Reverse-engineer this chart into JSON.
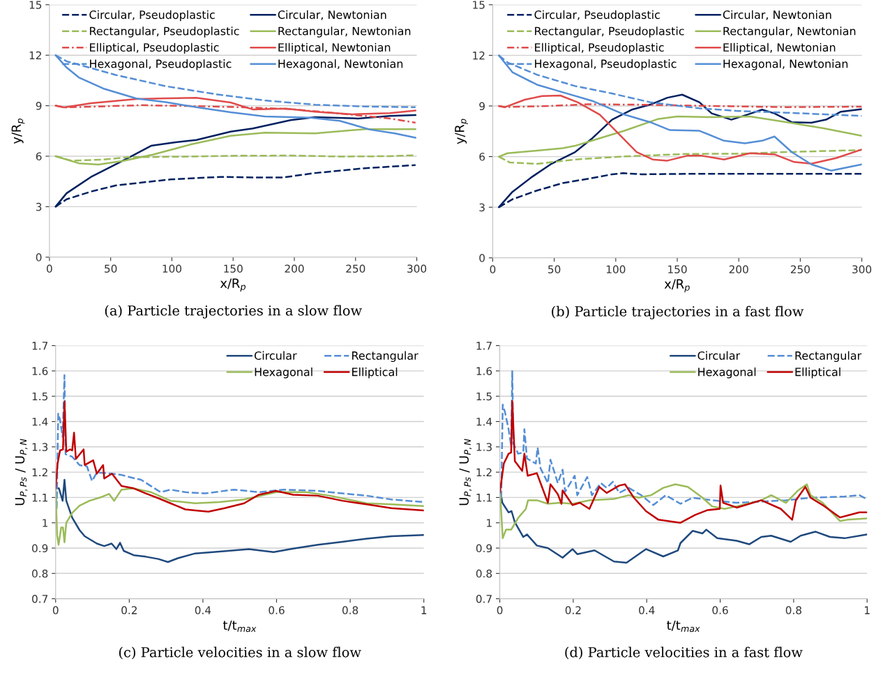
{
  "chart_data": [
    {
      "type": "line",
      "xlabel": "x/R$_{p}$",
      "ylabel": "y/R$_{p}$",
      "xlim": [
        0,
        300
      ],
      "xticks": [
        0,
        50,
        100,
        150,
        200,
        250,
        300
      ],
      "ylim": [
        0,
        15
      ],
      "yticks": [
        0,
        3,
        6,
        9,
        12,
        15
      ],
      "grid": "y",
      "legend": "top right",
      "marker": "none",
      "annotations": [
        "(a) Particle trajectories in a slow flow"
      ],
      "series": [
        {
          "name": "Circular, Pseudoplastic",
          "color": "#002060",
          "line_style": "dashed",
          "x": [
            5,
            14,
            34,
            54,
            81,
            99,
            120,
            140,
            166,
            191,
            217,
            237,
            258,
            299
          ],
          "values": [
            3,
            3.44,
            3.9,
            4.26,
            4.48,
            4.62,
            4.7,
            4.77,
            4.74,
            4.74,
            5.0,
            5.14,
            5.29,
            5.47
          ]
        },
        {
          "name": "Circular, Newtonian",
          "color": "#002060",
          "line_style": "solid",
          "x": [
            5,
            14,
            34,
            50,
            65,
            83,
            101,
            120,
            148,
            166,
            197,
            217,
            252,
            278,
            299
          ],
          "values": [
            3,
            3.8,
            4.77,
            5.36,
            5.92,
            6.62,
            6.81,
            6.96,
            7.46,
            7.65,
            8.14,
            8.32,
            8.24,
            8.39,
            8.44
          ]
        },
        {
          "name": "Rectangular, Pseudoplastic",
          "color": "#9bbb59",
          "line_style": "dashed",
          "x": [
            5,
            18,
            44,
            65,
            81,
            115,
            156,
            197,
            237,
            278,
            299
          ],
          "values": [
            6,
            5.73,
            5.8,
            5.95,
            5.95,
            5.98,
            6.03,
            6.04,
            5.98,
            6.0,
            6.06
          ]
        },
        {
          "name": "Rectangular, Newtonian",
          "color": "#9bbb59",
          "line_style": "solid",
          "x": [
            5,
            24,
            40,
            61,
            85,
            115,
            148,
            176,
            217,
            258,
            299
          ],
          "values": [
            6,
            5.58,
            5.5,
            5.73,
            6.1,
            6.69,
            7.21,
            7.4,
            7.36,
            7.61,
            7.61
          ]
        },
        {
          "name": "Elliptical, Pseudoplastic",
          "color": "#e04b4b",
          "line_style": "dashdot",
          "x": [
            5,
            12,
            34,
            75,
            115,
            156,
            197,
            237,
            278,
            299
          ],
          "values": [
            9,
            8.9,
            8.94,
            9.03,
            8.98,
            8.91,
            8.8,
            8.54,
            8.24,
            7.99
          ]
        },
        {
          "name": "Elliptical, Newtonian",
          "color": "#e04b4b",
          "line_style": "solid",
          "x": [
            5,
            12,
            34,
            71,
            95,
            120,
            148,
            166,
            193,
            217,
            248,
            278,
            299
          ],
          "values": [
            9,
            8.9,
            9.15,
            9.4,
            9.44,
            9.47,
            9.19,
            8.78,
            8.83,
            8.64,
            8.49,
            8.56,
            8.71
          ]
        },
        {
          "name": "Hexagonal, Pseudoplastic",
          "color": "#558ed5",
          "line_style": "dashed",
          "x": [
            5,
            14,
            54,
            95,
            136,
            176,
            217,
            258,
            299
          ],
          "values": [
            12,
            11.64,
            10.83,
            10.16,
            9.68,
            9.31,
            9.06,
            8.95,
            8.91
          ]
        },
        {
          "name": "Hexagonal, Newtonian",
          "color": "#558ed5",
          "line_style": "solid",
          "x": [
            5,
            14,
            24,
            44,
            71,
            95,
            120,
            148,
            176,
            213,
            237,
            262,
            282,
            299
          ],
          "values": [
            12,
            11.27,
            10.68,
            10.02,
            9.43,
            9.21,
            8.91,
            8.61,
            8.36,
            8.29,
            8.1,
            7.58,
            7.36,
            7.1
          ]
        }
      ]
    },
    {
      "type": "line",
      "xlabel": "x/R$_{p}$",
      "ylabel": "y/R$_{p}$",
      "xlim": [
        0,
        300
      ],
      "xticks": [
        0,
        50,
        100,
        150,
        200,
        250,
        300
      ],
      "ylim": [
        0,
        15
      ],
      "yticks": [
        0,
        3,
        6,
        9,
        12,
        15
      ],
      "grid": "y",
      "legend": "top right",
      "marker": "none",
      "annotations": [
        "(b) Particle trajectories in a fast flow"
      ],
      "series": [
        {
          "name": "Circular, Pseudoplastic",
          "color": "#002060",
          "line_style": "dashed",
          "x": [
            5,
            16,
            36,
            57,
            81,
            97,
            106,
            121,
            158,
            198,
            239,
            300
          ],
          "values": [
            3,
            3.47,
            3.99,
            4.43,
            4.73,
            4.95,
            5.02,
            4.95,
            4.98,
            4.98,
            4.98,
            4.98
          ]
        },
        {
          "name": "Circular, Newtonian",
          "color": "#002060",
          "line_style": "solid",
          "x": [
            5,
            16,
            32,
            47,
            67,
            81,
            97,
            113,
            128,
            142,
            154,
            168,
            178,
            194,
            207,
            219,
            229,
            243,
            259,
            271,
            283,
            300
          ],
          "values": [
            3,
            3.91,
            4.8,
            5.54,
            6.27,
            7.09,
            8.19,
            8.78,
            9.08,
            9.49,
            9.67,
            9.22,
            8.56,
            8.19,
            8.49,
            8.78,
            8.56,
            8.04,
            8.01,
            8.19,
            8.66,
            8.81
          ]
        },
        {
          "name": "Rectangular, Pseudoplastic",
          "color": "#9bbb59",
          "line_style": "dashed",
          "x": [
            5,
            14,
            36,
            67,
            107,
            158,
            198,
            239,
            300
          ],
          "values": [
            6,
            5.65,
            5.57,
            5.83,
            6.01,
            6.16,
            6.17,
            6.27,
            6.39
          ]
        },
        {
          "name": "Rectangular, Newtonian",
          "color": "#9bbb59",
          "line_style": "solid",
          "x": [
            5,
            12,
            36,
            57,
            67,
            87,
            107,
            134,
            150,
            178,
            209,
            239,
            269,
            300
          ],
          "values": [
            6,
            6.2,
            6.35,
            6.5,
            6.64,
            7.09,
            7.53,
            8.22,
            8.38,
            8.34,
            8.38,
            8.04,
            7.68,
            7.23
          ]
        },
        {
          "name": "Elliptical, Pseudoplastic",
          "color": "#e04b4b",
          "line_style": "dashdot",
          "x": [
            5,
            10,
            46,
            77,
            117,
            178,
            239,
            300
          ],
          "values": [
            9,
            8.93,
            9.0,
            9.1,
            9.08,
            9.0,
            8.93,
            8.96
          ]
        },
        {
          "name": "Elliptical, Newtonian",
          "color": "#e04b4b",
          "line_style": "solid",
          "x": [
            5,
            10,
            26,
            40,
            55,
            69,
            87,
            101,
            117,
            130,
            142,
            158,
            170,
            188,
            209,
            229,
            245,
            259,
            279,
            300
          ],
          "values": [
            9,
            8.93,
            9.37,
            9.59,
            9.62,
            9.22,
            8.49,
            7.45,
            6.27,
            5.83,
            5.76,
            6.05,
            6.05,
            5.83,
            6.2,
            6.13,
            5.68,
            5.58,
            5.91,
            6.42
          ]
        },
        {
          "name": "Hexagonal, Pseudoplastic",
          "color": "#558ed5",
          "line_style": "dashed",
          "x": [
            5,
            12,
            36,
            67,
            97,
            128,
            168,
            198,
            239,
            300
          ],
          "values": [
            12,
            11.58,
            10.85,
            10.18,
            9.74,
            9.22,
            8.86,
            8.71,
            8.6,
            8.41
          ]
        },
        {
          "name": "Hexagonal, Newtonian",
          "color": "#558ed5",
          "line_style": "solid",
          "x": [
            5,
            16,
            36,
            57,
            81,
            107,
            128,
            144,
            168,
            188,
            205,
            219,
            229,
            243,
            259,
            275,
            300
          ],
          "values": [
            12,
            11.0,
            10.26,
            9.81,
            9.3,
            8.49,
            8.04,
            7.57,
            7.53,
            6.94,
            6.79,
            6.94,
            7.19,
            6.27,
            5.54,
            5.17,
            5.54
          ]
        }
      ]
    },
    {
      "type": "line",
      "xlabel": "t/t$_{max}$",
      "ylabel": "U$_{P,Ps}$ / U$_{P,N}$",
      "xlim": [
        0,
        1
      ],
      "xticks": [
        0,
        0.2,
        0.4,
        0.6,
        0.8,
        1
      ],
      "ylim": [
        0.7,
        1.7
      ],
      "yticks": [
        0.7,
        0.8,
        0.9,
        1,
        1.1,
        1.2,
        1.3,
        1.4,
        1.5,
        1.6,
        1.7
      ],
      "grid": "y",
      "legend": "top right",
      "marker": "none",
      "annotations": [
        "(c) Particle velocities in a slow flow"
      ],
      "series": [
        {
          "name": "Circular",
          "color": "#1f497d",
          "line_style": "solid",
          "x": [
            0,
            0.009,
            0.019,
            0.024,
            0.029,
            0.045,
            0.065,
            0.079,
            0.112,
            0.132,
            0.152,
            0.165,
            0.175,
            0.185,
            0.212,
            0.245,
            0.279,
            0.305,
            0.332,
            0.379,
            0.445,
            0.525,
            0.592,
            0.645,
            0.712,
            0.779,
            0.845,
            0.912,
            0.999
          ],
          "values": [
            1.136,
            1.136,
            1.087,
            1.17,
            1.087,
            1.02,
            0.971,
            0.947,
            0.918,
            0.908,
            0.918,
            0.896,
            0.921,
            0.889,
            0.872,
            0.866,
            0.857,
            0.845,
            0.86,
            0.879,
            0.886,
            0.896,
            0.884,
            0.898,
            0.913,
            0.925,
            0.937,
            0.947,
            0.952
          ]
        },
        {
          "name": "Rectangular",
          "color": "#558ed5",
          "line_style": "dashed",
          "x": [
            0,
            0.003,
            0.007,
            0.012,
            0.019,
            0.024,
            0.027,
            0.045,
            0.065,
            0.085,
            0.099,
            0.112,
            0.152,
            0.179,
            0.205,
            0.232,
            0.259,
            0.285,
            0.312,
            0.352,
            0.405,
            0.485,
            0.552,
            0.619,
            0.712,
            0.779,
            0.845,
            0.912,
            0.999
          ],
          "values": [
            1.136,
            1.058,
            1.431,
            1.407,
            1.339,
            1.583,
            1.271,
            1.261,
            1.228,
            1.223,
            1.165,
            1.199,
            1.194,
            1.189,
            1.179,
            1.17,
            1.145,
            1.121,
            1.131,
            1.121,
            1.116,
            1.131,
            1.121,
            1.131,
            1.126,
            1.116,
            1.107,
            1.092,
            1.082
          ]
        },
        {
          "name": "Hexagonal",
          "color": "#9bbb59",
          "line_style": "solid",
          "x": [
            0,
            0.004,
            0.008,
            0.015,
            0.02,
            0.024,
            0.029,
            0.045,
            0.065,
            0.092,
            0.125,
            0.145,
            0.159,
            0.179,
            0.212,
            0.259,
            0.312,
            0.379,
            0.445,
            0.512,
            0.599,
            0.679,
            0.745,
            0.845,
            0.912,
            0.999
          ],
          "values": [
            1.136,
            0.952,
            0.913,
            0.981,
            0.981,
            0.923,
            1.0,
            1.039,
            1.068,
            1.087,
            1.102,
            1.114,
            1.087,
            1.131,
            1.136,
            1.121,
            1.087,
            1.077,
            1.082,
            1.092,
            1.121,
            1.121,
            1.107,
            1.077,
            1.073,
            1.066
          ]
        },
        {
          "name": "Elliptical",
          "color": "#c00000",
          "line_style": "solid",
          "x": [
            0,
            0.005,
            0.012,
            0.02,
            0.024,
            0.029,
            0.039,
            0.045,
            0.05,
            0.055,
            0.076,
            0.079,
            0.102,
            0.112,
            0.129,
            0.132,
            0.153,
            0.179,
            0.212,
            0.245,
            0.279,
            0.312,
            0.352,
            0.379,
            0.415,
            0.459,
            0.512,
            0.552,
            0.599,
            0.645,
            0.712,
            0.779,
            0.845,
            0.912,
            0.999
          ],
          "values": [
            1.136,
            1.232,
            1.286,
            1.29,
            1.479,
            1.281,
            1.29,
            1.286,
            1.356,
            1.252,
            1.29,
            1.228,
            1.247,
            1.194,
            1.228,
            1.175,
            1.194,
            1.145,
            1.136,
            1.116,
            1.097,
            1.077,
            1.053,
            1.049,
            1.044,
            1.058,
            1.077,
            1.111,
            1.126,
            1.111,
            1.107,
            1.087,
            1.073,
            1.058,
            1.049
          ]
        }
      ]
    },
    {
      "type": "line",
      "xlabel": "t/t$_{max}$",
      "ylabel": "U$_{P,Ps}$ / U$_{P,N}$",
      "xlim": [
        0,
        1
      ],
      "xticks": [
        0,
        0.2,
        0.4,
        0.6,
        0.8,
        1
      ],
      "ylim": [
        0.7,
        1.7
      ],
      "yticks": [
        0.7,
        0.8,
        0.9,
        1,
        1.1,
        1.2,
        1.3,
        1.4,
        1.5,
        1.6,
        1.7
      ],
      "grid": "y",
      "legend": "top right",
      "marker": "none",
      "annotations": [
        "(d) Particle velocities in a fast flow"
      ],
      "series": [
        {
          "name": "Circular",
          "color": "#1f497d",
          "line_style": "solid",
          "x": [
            0,
            0.007,
            0.024,
            0.032,
            0.041,
            0.064,
            0.074,
            0.101,
            0.131,
            0.171,
            0.198,
            0.211,
            0.258,
            0.311,
            0.345,
            0.398,
            0.445,
            0.485,
            0.492,
            0.525,
            0.552,
            0.562,
            0.592,
            0.645,
            0.679,
            0.712,
            0.739,
            0.792,
            0.819,
            0.859,
            0.899,
            0.939,
            0.999
          ],
          "values": [
            1.138,
            1.079,
            1.041,
            1.046,
            1.002,
            0.944,
            0.954,
            0.91,
            0.9,
            0.862,
            0.896,
            0.876,
            0.891,
            0.847,
            0.842,
            0.896,
            0.867,
            0.891,
            0.92,
            0.968,
            0.958,
            0.973,
            0.939,
            0.929,
            0.915,
            0.944,
            0.949,
            0.925,
            0.949,
            0.965,
            0.944,
            0.939,
            0.954
          ]
        },
        {
          "name": "Rectangular",
          "color": "#558ed5",
          "line_style": "dashed",
          "x": [
            0,
            0.004,
            0.008,
            0.014,
            0.024,
            0.031,
            0.034,
            0.037,
            0.05,
            0.064,
            0.067,
            0.074,
            0.098,
            0.103,
            0.111,
            0.131,
            0.138,
            0.158,
            0.171,
            0.178,
            0.204,
            0.211,
            0.238,
            0.251,
            0.275,
            0.291,
            0.308,
            0.325,
            0.351,
            0.385,
            0.418,
            0.452,
            0.492,
            0.525,
            0.578,
            0.645,
            0.712,
            0.779,
            0.846,
            0.939,
            0.979,
            0.999
          ],
          "values": [
            1.138,
            1.099,
            1.467,
            1.438,
            1.37,
            1.302,
            1.602,
            1.312,
            1.273,
            1.278,
            1.37,
            1.254,
            1.234,
            1.297,
            1.215,
            1.157,
            1.249,
            1.157,
            1.21,
            1.123,
            1.186,
            1.109,
            1.181,
            1.109,
            1.157,
            1.138,
            1.162,
            1.118,
            1.138,
            1.109,
            1.07,
            1.109,
            1.075,
            1.099,
            1.089,
            1.079,
            1.084,
            1.089,
            1.099,
            1.104,
            1.109,
            1.094
          ]
        },
        {
          "name": "Hexagonal",
          "color": "#9bbb59",
          "line_style": "solid",
          "x": [
            0,
            0.004,
            0.008,
            0.017,
            0.031,
            0.051,
            0.071,
            0.077,
            0.101,
            0.131,
            0.164,
            0.198,
            0.244,
            0.311,
            0.351,
            0.378,
            0.412,
            0.445,
            0.478,
            0.512,
            0.552,
            0.578,
            0.612,
            0.645,
            0.712,
            0.739,
            0.779,
            0.812,
            0.836,
            0.846,
            0.879,
            0.926,
            0.946,
            0.999
          ],
          "values": [
            1.138,
            1.041,
            0.939,
            0.973,
            0.973,
            1.021,
            1.055,
            1.089,
            1.089,
            1.075,
            1.079,
            1.075,
            1.089,
            1.094,
            1.109,
            1.099,
            1.109,
            1.138,
            1.152,
            1.142,
            1.099,
            1.065,
            1.055,
            1.065,
            1.089,
            1.109,
            1.079,
            1.128,
            1.152,
            1.109,
            1.079,
            1.007,
            1.012,
            1.017
          ]
        },
        {
          "name": "Elliptical",
          "color": "#c00000",
          "line_style": "solid",
          "x": [
            0,
            0.011,
            0.024,
            0.031,
            0.034,
            0.041,
            0.061,
            0.067,
            0.076,
            0.101,
            0.111,
            0.131,
            0.138,
            0.158,
            0.168,
            0.171,
            0.198,
            0.218,
            0.244,
            0.271,
            0.291,
            0.325,
            0.341,
            0.365,
            0.398,
            0.432,
            0.458,
            0.492,
            0.532,
            0.565,
            0.599,
            0.601,
            0.608,
            0.645,
            0.712,
            0.765,
            0.796,
            0.806,
            0.832,
            0.846,
            0.879,
            0.926,
            0.952,
            0.979,
            0.999
          ],
          "values": [
            1.118,
            1.234,
            1.273,
            1.278,
            1.481,
            1.244,
            1.205,
            1.273,
            1.186,
            1.196,
            1.157,
            1.079,
            1.152,
            1.113,
            1.075,
            1.128,
            1.07,
            1.079,
            1.055,
            1.142,
            1.118,
            1.147,
            1.152,
            1.099,
            1.046,
            1.012,
            1.007,
            1.0,
            1.031,
            1.05,
            1.055,
            1.147,
            1.079,
            1.06,
            1.089,
            1.055,
            1.012,
            1.089,
            1.142,
            1.099,
            1.07,
            1.021,
            1.031,
            1.041,
            1.041
          ]
        }
      ]
    }
  ]
}
